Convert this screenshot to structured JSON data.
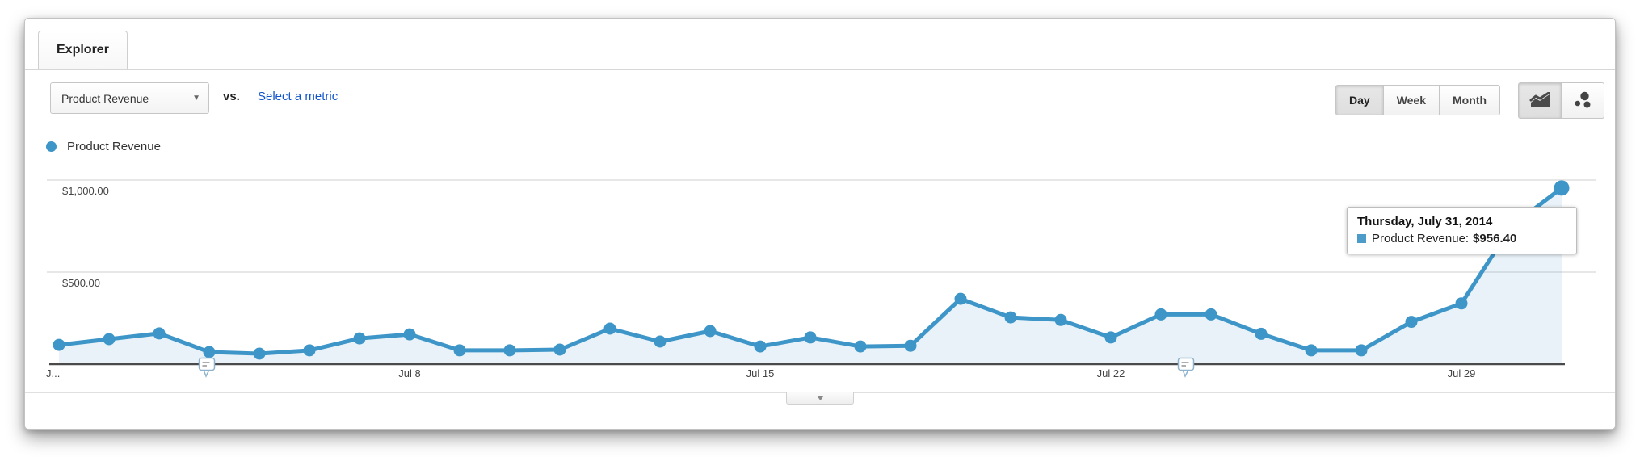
{
  "tab": {
    "label": "Explorer"
  },
  "toolbar": {
    "metric_select": {
      "value": "Product Revenue"
    },
    "vs_label": "vs.",
    "select_metric_link": "Select a metric",
    "granularity": {
      "options": [
        "Day",
        "Week",
        "Month"
      ],
      "active": "Day"
    },
    "chart_type_active": "line-chart"
  },
  "legend": {
    "series_label": "Product Revenue",
    "color": "#3e96c8"
  },
  "tooltip": {
    "date": "Thursday, July 31, 2014",
    "series_label": "Product Revenue:",
    "value": "$956.40",
    "swatch_color": "#4d9bc9"
  },
  "chart_data": {
    "type": "line",
    "title": "Product Revenue by day",
    "x": [
      "Jul 1",
      "Jul 2",
      "Jul 3",
      "Jul 4",
      "Jul 5",
      "Jul 6",
      "Jul 7",
      "Jul 8",
      "Jul 9",
      "Jul 10",
      "Jul 11",
      "Jul 12",
      "Jul 13",
      "Jul 14",
      "Jul 15",
      "Jul 16",
      "Jul 17",
      "Jul 18",
      "Jul 19",
      "Jul 20",
      "Jul 21",
      "Jul 22",
      "Jul 23",
      "Jul 24",
      "Jul 25",
      "Jul 26",
      "Jul 27",
      "Jul 28",
      "Jul 29",
      "Jul 30",
      "Jul 31"
    ],
    "series": [
      {
        "name": "Product Revenue",
        "color": "#3e96c8",
        "values": [
          105,
          136,
          167,
          66,
          57,
          75,
          140,
          162,
          75,
          75,
          79,
          193,
          123,
          180,
          96,
          145,
          96,
          100,
          355,
          254,
          240,
          145,
          270,
          270,
          165,
          75,
          75,
          230,
          330,
          750,
          956.4
        ]
      }
    ],
    "x_ticks": [
      {
        "day": 0,
        "label": "J..."
      },
      {
        "day": 7,
        "label": "Jul 8"
      },
      {
        "day": 14,
        "label": "Jul 15"
      },
      {
        "day": 21,
        "label": "Jul 22"
      },
      {
        "day": 28,
        "label": "Jul 29"
      }
    ],
    "y_ticks": [
      {
        "value": 500,
        "label": "$500.00"
      },
      {
        "value": 1000,
        "label": "$1,000.00"
      }
    ],
    "ylim": [
      0,
      1200
    ],
    "grid": true,
    "legend_position": "top-left",
    "highlight": {
      "index": 30,
      "value_label": "$956.40"
    },
    "annotations": [
      {
        "day": 2.95
      },
      {
        "day": 22.5
      }
    ],
    "fill_color": "rgba(62,150,200,0.12)",
    "grid_color": "#e7e7e7",
    "axis_color": "#4a4a4a"
  }
}
